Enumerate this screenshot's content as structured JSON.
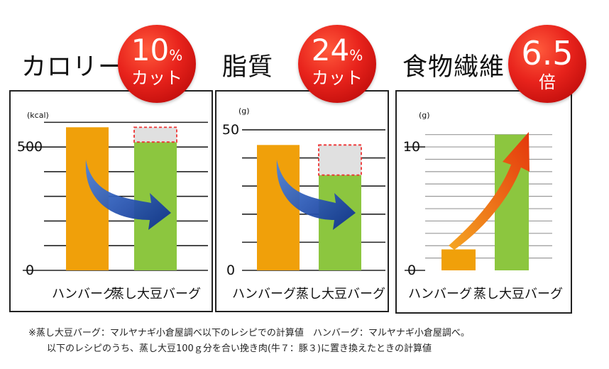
{
  "footnote": {
    "line1": "※蒸し大豆バーグ：マルヤナギ小倉屋調べ以下のレシピでの計算値　ハンバーグ：マルヤナギ小倉屋調べ。",
    "line2": "以下のレシピのうち、蒸し大豆100ｇ分を合い挽き肉(牛７：豚３)に置き換えたときの計算値"
  },
  "colors": {
    "hamburg": "#f0a00a",
    "soy": "#8cc63f",
    "removed": "#e0e0e0",
    "dash": "#e33",
    "arrow_blue": "#1f56b8",
    "arrow_orange": "#f06a10"
  },
  "chart_data": [
    {
      "type": "bar",
      "title": "カロリー",
      "badge": {
        "value": "10",
        "unit": "%",
        "label": "カット"
      },
      "unit_label": "(kcal)",
      "categories": [
        "ハンバーグ",
        "蒸し大豆バーグ"
      ],
      "values": [
        580,
        520
      ],
      "removed": 60,
      "yticks": [
        "500",
        "0"
      ],
      "ytick_values": [
        500,
        0
      ],
      "ylim": [
        0,
        650
      ],
      "gridline_values": [
        0,
        100,
        200,
        300,
        400,
        500,
        600
      ],
      "arrow": "blue"
    },
    {
      "type": "bar",
      "title": "脂質",
      "badge": {
        "value": "24",
        "unit": "%",
        "label": "カット"
      },
      "unit_label": "(g)",
      "categories": [
        "ハンバーグ",
        "蒸し大豆バーグ"
      ],
      "values": [
        44.6,
        33.9
      ],
      "removed": 10.7,
      "yticks": [
        "50",
        "0"
      ],
      "ytick_values": [
        50,
        0
      ],
      "ylim": [
        0,
        52
      ],
      "gridline_values": [
        0,
        10,
        20,
        30,
        40,
        50
      ],
      "arrow": "blue"
    },
    {
      "type": "bar",
      "title": "食物繊維",
      "badge": {
        "value": "6.5",
        "unit": "",
        "label": "倍"
      },
      "unit_label": "(g)",
      "categories": [
        "ハンバーグ",
        "蒸し大豆バーグ"
      ],
      "values": [
        1.7,
        11
      ],
      "yticks": [
        "10",
        "0"
      ],
      "ytick_values": [
        10,
        0
      ],
      "ylim": [
        0,
        11.5
      ],
      "gridline_values": [
        1,
        2,
        3,
        4,
        5,
        6,
        7,
        8,
        9,
        10,
        11
      ],
      "arrow": "orange"
    }
  ]
}
